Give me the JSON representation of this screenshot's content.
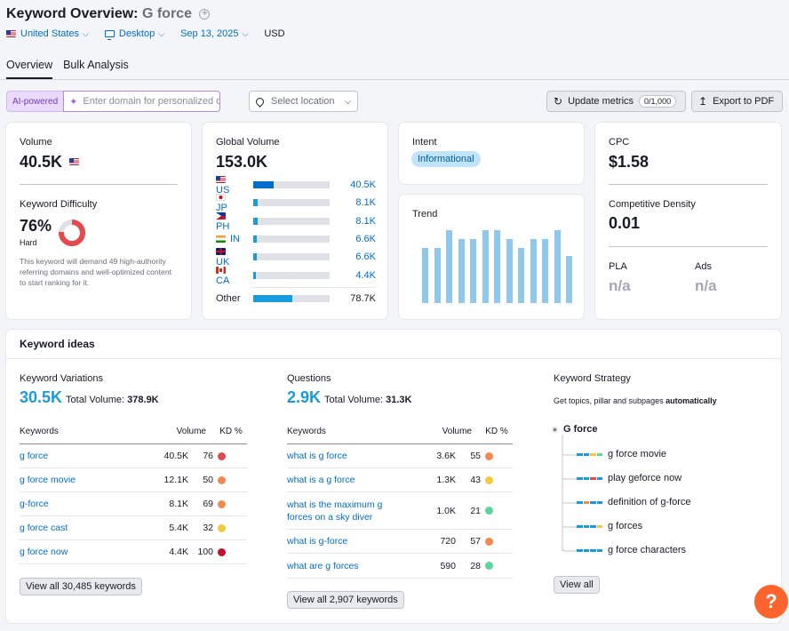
{
  "header": {
    "title_prefix": "Keyword Overview:",
    "keyword": "G force",
    "filters": {
      "country": "United States",
      "device": "Desktop",
      "date": "Sep 13, 2025",
      "currency": "USD"
    },
    "tabs": [
      "Overview",
      "Bulk Analysis"
    ]
  },
  "toolbar": {
    "ai_badge": "AI-powered",
    "domain_placeholder": "Enter domain for personalized data",
    "location_placeholder": "Select location",
    "update_label": "Update metrics",
    "update_counter": "0/1,000",
    "export_label": "Export to PDF"
  },
  "volume_card": {
    "label": "Volume",
    "value": "40.5K",
    "kd_label": "Keyword Difficulty",
    "kd_value": "76%",
    "kd_level": "Hard",
    "kd_fraction": 0.76,
    "kd_note": "This keyword will demand 49 high-authority referring domains and well-optimized content to start ranking for it."
  },
  "global_volume": {
    "label": "Global Volume",
    "value": "153.0K",
    "rows": [
      {
        "code": "US",
        "value": "40.5K",
        "share": 0.265
      },
      {
        "code": "JP",
        "value": "8.1K",
        "share": 0.053
      },
      {
        "code": "PH",
        "value": "8.1K",
        "share": 0.053
      },
      {
        "code": "IN",
        "value": "6.6K",
        "share": 0.043
      },
      {
        "code": "UK",
        "value": "6.6K",
        "share": 0.043
      },
      {
        "code": "CA",
        "value": "4.4K",
        "share": 0.029
      }
    ],
    "other": {
      "label": "Other",
      "value": "78.7K",
      "share": 0.514
    }
  },
  "intent": {
    "label": "Intent",
    "badge": "Informational"
  },
  "trend": {
    "label": "Trend",
    "values": [
      0.62,
      0.62,
      0.82,
      0.72,
      0.72,
      0.82,
      0.82,
      0.72,
      0.62,
      0.72,
      0.72,
      0.82,
      0.53
    ]
  },
  "cpc_card": {
    "cpc_label": "CPC",
    "cpc_value": "$1.58",
    "cd_label": "Competitive Density",
    "cd_value": "0.01",
    "pla_label": "PLA",
    "pla_value": "n/a",
    "ads_label": "Ads",
    "ads_value": "n/a"
  },
  "ideas": {
    "title": "Keyword ideas",
    "variations": {
      "label": "Keyword Variations",
      "count": "30.5K",
      "total_label": "Total Volume:",
      "total_value": "378.9K",
      "col_kw": "Keywords",
      "col_vol": "Volume",
      "col_kd": "KD %",
      "rows": [
        {
          "kw": "g force",
          "vol": "40.5K",
          "kd": "76",
          "color": "#e5484d"
        },
        {
          "kw": "g force movie",
          "vol": "12.1K",
          "kd": "50",
          "color": "#f08a50"
        },
        {
          "kw": "g-force",
          "vol": "8.1K",
          "kd": "69",
          "color": "#f08a50"
        },
        {
          "kw": "g force cast",
          "vol": "5.4K",
          "kd": "32",
          "color": "#f4c93e"
        },
        {
          "kw": "g force now",
          "vol": "4.4K",
          "kd": "100",
          "color": "#c8102e"
        }
      ],
      "view_all": "View all 30,485 keywords"
    },
    "questions": {
      "label": "Questions",
      "count": "2.9K",
      "total_label": "Total Volume:",
      "total_value": "31.3K",
      "col_kw": "Keywords",
      "col_vol": "Volume",
      "col_kd": "KD %",
      "rows": [
        {
          "kw": "what is g force",
          "vol": "3.6K",
          "kd": "55",
          "color": "#f08a50"
        },
        {
          "kw": "what is a g force",
          "vol": "1.3K",
          "kd": "43",
          "color": "#f4c93e"
        },
        {
          "kw": "what is the maximum g forces on a sky diver",
          "vol": "1.0K",
          "kd": "21",
          "color": "#5dd39e"
        },
        {
          "kw": "what is g-force",
          "vol": "720",
          "kd": "57",
          "color": "#f08a50"
        },
        {
          "kw": "what are g forces",
          "vol": "590",
          "kd": "28",
          "color": "#5dd39e"
        }
      ],
      "view_all": "View all 2,907 keywords"
    },
    "strategy": {
      "label": "Keyword Strategy",
      "subtitle_prefix": "Get topics, pillar and subpages",
      "subtitle_bold": "automatically",
      "root": "G force",
      "items": [
        "g force movie",
        "play geforce now",
        "definition of g-force",
        "g forces",
        "g force characters"
      ],
      "view_all": "View all"
    }
  },
  "help_label": "?"
}
